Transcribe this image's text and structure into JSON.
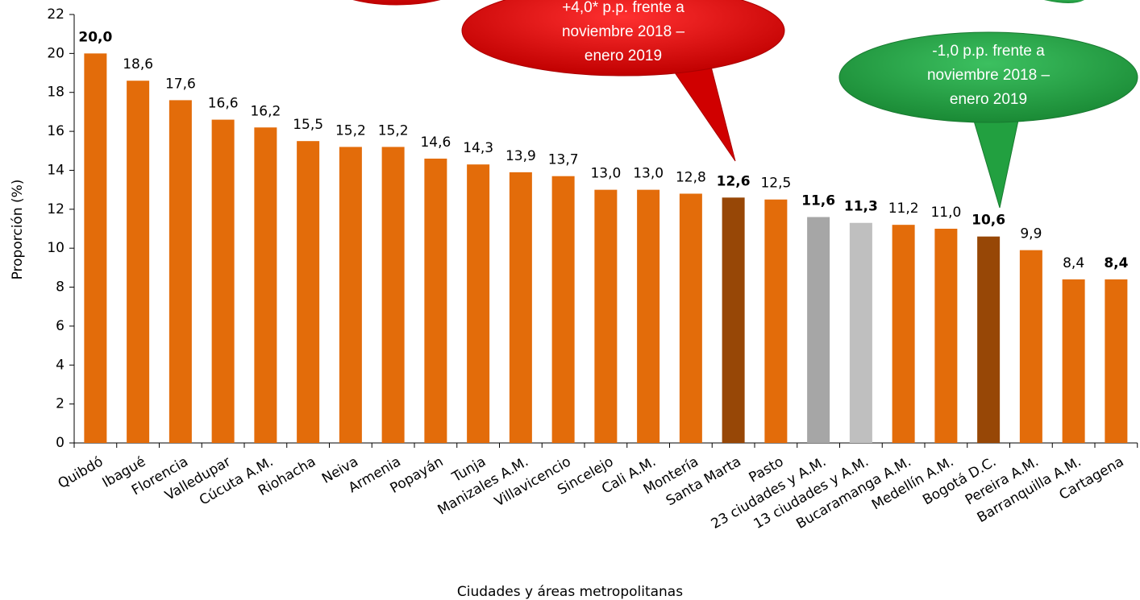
{
  "chart_data": {
    "type": "bar",
    "y_label": "Proporción (%)",
    "x_label": "Ciudades y áreas metropolitanas",
    "categories": [
      "Quibdó",
      "Ibagué",
      "Florencia",
      "Valledupar",
      "Cúcuta A.M.",
      "Riohacha",
      "Neiva",
      "Armenia",
      "Popayán",
      "Tunja",
      "Manizales A.M.",
      "Villavicencio",
      "Sincelejo",
      "Cali A.M.",
      "Montería",
      "Santa Marta",
      "Pasto",
      "23 ciudades y A.M.",
      "13 ciudades y A.M.",
      "Bucaramanga A.M.",
      "Medellín A.M.",
      "Bogotá D.C.",
      "Pereira A.M.",
      "Barranquilla A.M.",
      "Cartagena"
    ],
    "values": [
      20.0,
      18.6,
      17.6,
      16.6,
      16.2,
      15.5,
      15.2,
      15.2,
      14.6,
      14.3,
      13.9,
      13.7,
      13.0,
      13.0,
      12.8,
      12.6,
      12.5,
      11.6,
      11.3,
      11.2,
      11.0,
      10.6,
      9.9,
      8.4,
      8.4
    ],
    "value_labels": [
      "20,0",
      "18,6",
      "17,6",
      "16,6",
      "16,2",
      "15,5",
      "15,2",
      "15,2",
      "14,6",
      "14,3",
      "13,9",
      "13,7",
      "13,0",
      "13,0",
      "12,8",
      "12,6",
      "12,5",
      "11,6",
      "11,3",
      "11,2",
      "11,0",
      "10,6",
      "9,9",
      "8,4",
      "8,4"
    ],
    "colors": [
      "#e36c0a",
      "#e36c0a",
      "#e36c0a",
      "#e36c0a",
      "#e36c0a",
      "#e36c0a",
      "#e36c0a",
      "#e36c0a",
      "#e36c0a",
      "#e36c0a",
      "#e36c0a",
      "#e36c0a",
      "#e36c0a",
      "#e36c0a",
      "#e36c0a",
      "#974706",
      "#e36c0a",
      "#a6a6a6",
      "#bfbfbf",
      "#e36c0a",
      "#e36c0a",
      "#974706",
      "#e36c0a",
      "#e36c0a",
      "#e36c0a"
    ],
    "value_label_bold": [
      true,
      false,
      false,
      false,
      false,
      false,
      false,
      false,
      false,
      false,
      false,
      false,
      false,
      false,
      false,
      true,
      false,
      true,
      true,
      false,
      false,
      true,
      false,
      false,
      true
    ],
    "ylim": [
      0,
      22
    ],
    "yticks": [
      0,
      2,
      4,
      6,
      8,
      10,
      12,
      14,
      16,
      18,
      20,
      22
    ],
    "annotations": [
      {
        "lines": [
          "+4,0* p.p. frente a",
          "noviembre 2018 –",
          "enero 2019"
        ]
      },
      {
        "lines": [
          "-1,0 p.p. frente a",
          "noviembre 2018 –",
          "enero 2019"
        ]
      }
    ]
  }
}
